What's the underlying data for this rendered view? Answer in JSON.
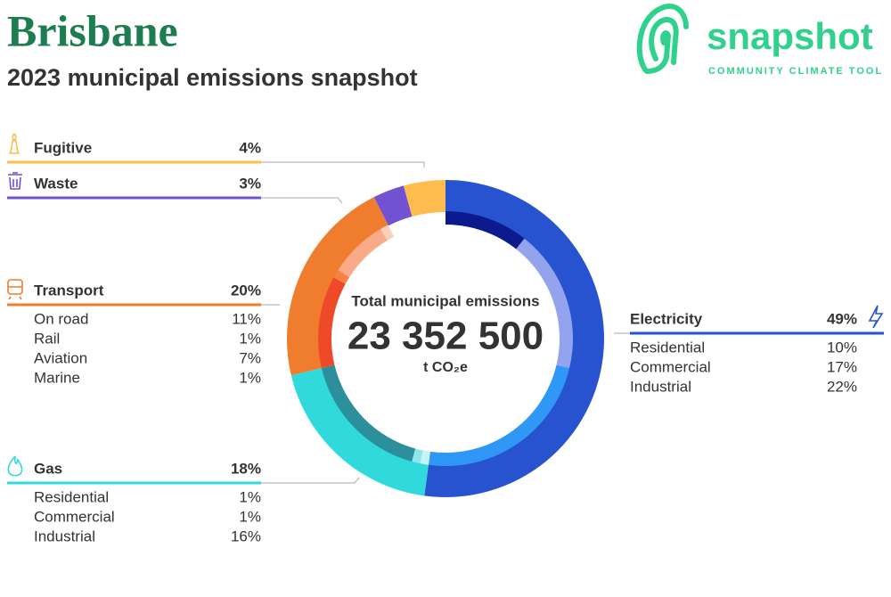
{
  "brand": {
    "name": "snapshot",
    "tagline": "COMMUNITY CLIMATE TOOL"
  },
  "chart_data": {
    "type": "donut",
    "title": "Brisbane",
    "subtitle": "2023 municipal emissions snapshot",
    "center_label": "Total municipal emissions",
    "total": {
      "value": 23352500,
      "label": "23 352 500"
    },
    "unit": "t CO₂e",
    "series": [
      {
        "name": "Electricity",
        "color": "#2752d0",
        "value": 49,
        "value_label": "49%",
        "breakdown": {
          "categories": [
            "Residential",
            "Commercial",
            "Industrial"
          ],
          "values": [
            10,
            17,
            22
          ],
          "value_labels": [
            "10%",
            "17%",
            "22%"
          ],
          "colors": [
            "#0b1a8c",
            "#93a3ee",
            "#2f98f6"
          ]
        }
      },
      {
        "name": "Gas",
        "color": "#2fd9dc",
        "value": 18,
        "value_label": "18%",
        "breakdown": {
          "categories": [
            "Residential",
            "Commercial",
            "Industrial"
          ],
          "values": [
            1,
            1,
            16
          ],
          "value_labels": [
            "1%",
            "1%",
            "16%"
          ],
          "colors": [
            "#c6f3f5",
            "#8fe6ea",
            "#2c8f9c"
          ]
        }
      },
      {
        "name": "Transport",
        "color": "#f07c2e",
        "value": 20,
        "value_label": "20%",
        "breakdown": {
          "categories": [
            "On road",
            "Rail",
            "Aviation",
            "Marine"
          ],
          "values": [
            11,
            1,
            7,
            1
          ],
          "value_labels": [
            "11%",
            "1%",
            "7%",
            "1%"
          ],
          "colors": [
            "#ee4a2a",
            "#f5823e",
            "#f9aa88",
            "#fbd0bb"
          ]
        }
      },
      {
        "name": "Waste",
        "color": "#7152d2",
        "value": 3,
        "value_label": "3%"
      },
      {
        "name": "Fugitive",
        "color": "#ffbc4e",
        "value": 4,
        "value_label": "4%"
      }
    ]
  }
}
